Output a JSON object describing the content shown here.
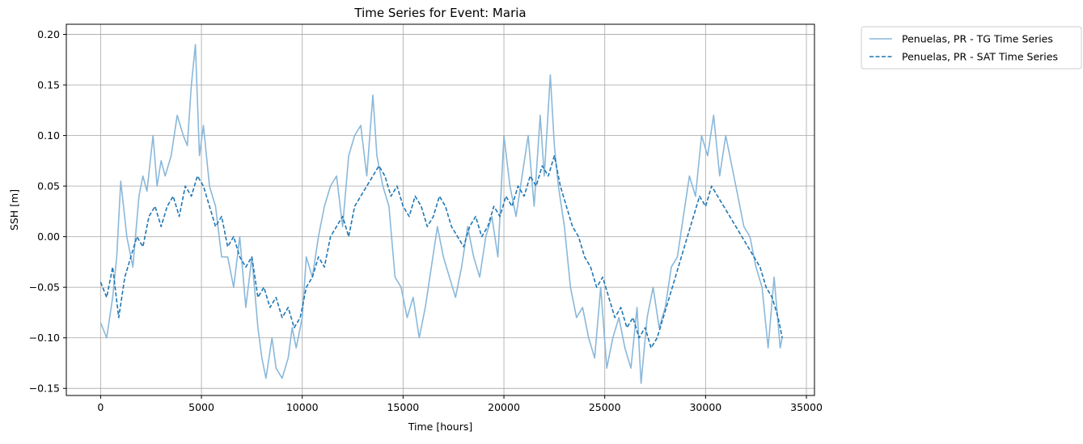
{
  "chart_data": {
    "type": "line",
    "title": "Time Series for Event: Maria",
    "xlabel": "Time [hours]",
    "ylabel": "SSH [m]",
    "xlim": [
      -1700,
      35400
    ],
    "ylim": [
      -0.157,
      0.21
    ],
    "xticks": [
      0,
      5000,
      10000,
      15000,
      20000,
      25000,
      30000,
      35000
    ],
    "xtick_labels": [
      "0",
      "5000",
      "10000",
      "15000",
      "20000",
      "25000",
      "30000",
      "35000"
    ],
    "yticks": [
      -0.15,
      -0.1,
      -0.05,
      0.0,
      0.05,
      0.1,
      0.15,
      0.2
    ],
    "ytick_labels": [
      "−0.15",
      "−0.10",
      "−0.05",
      "0.00",
      "0.05",
      "0.10",
      "0.15",
      "0.20"
    ],
    "grid": true,
    "legend_position": "outside-top-right",
    "series": [
      {
        "name": "Penuelas, PR - TG Time Series",
        "color": "#8ab8da",
        "style": "solid",
        "x": [
          0,
          300,
          600,
          800,
          1000,
          1300,
          1600,
          1900,
          2100,
          2300,
          2600,
          2800,
          3000,
          3200,
          3500,
          3800,
          4100,
          4300,
          4500,
          4700,
          4900,
          5100,
          5400,
          5700,
          6000,
          6300,
          6600,
          6900,
          7200,
          7500,
          7800,
          8000,
          8200,
          8500,
          8700,
          9000,
          9300,
          9500,
          9700,
          10000,
          10200,
          10500,
          10800,
          11100,
          11400,
          11700,
          12000,
          12300,
          12600,
          12900,
          13200,
          13500,
          13700,
          14000,
          14300,
          14600,
          14900,
          15200,
          15500,
          15800,
          16100,
          16400,
          16700,
          17000,
          17300,
          17600,
          17900,
          18200,
          18500,
          18800,
          19100,
          19400,
          19700,
          20000,
          20300,
          20600,
          20900,
          21200,
          21500,
          21800,
          22000,
          22300,
          22500,
          22700,
          23000,
          23300,
          23600,
          23900,
          24200,
          24500,
          24800,
          25100,
          25400,
          25700,
          26000,
          26300,
          26600,
          26800,
          27100,
          27400,
          27700,
          28000,
          28300,
          28600,
          28900,
          29200,
          29500,
          29800,
          30100,
          30400,
          30700,
          31000,
          31300,
          31600,
          31900,
          32200,
          32500,
          32800,
          33100,
          33400,
          33700,
          33800
        ],
        "y": [
          -0.085,
          -0.1,
          -0.06,
          -0.02,
          0.055,
          0.0,
          -0.03,
          0.04,
          0.06,
          0.045,
          0.1,
          0.05,
          0.075,
          0.06,
          0.08,
          0.12,
          0.1,
          0.09,
          0.15,
          0.19,
          0.08,
          0.11,
          0.05,
          0.03,
          -0.02,
          -0.02,
          -0.05,
          0.0,
          -0.07,
          -0.02,
          -0.09,
          -0.12,
          -0.14,
          -0.1,
          -0.13,
          -0.14,
          -0.12,
          -0.09,
          -0.11,
          -0.08,
          -0.02,
          -0.04,
          0.0,
          0.03,
          0.05,
          0.06,
          0.01,
          0.08,
          0.1,
          0.11,
          0.06,
          0.14,
          0.08,
          0.05,
          0.03,
          -0.04,
          -0.05,
          -0.08,
          -0.06,
          -0.1,
          -0.07,
          -0.03,
          0.01,
          -0.02,
          -0.04,
          -0.06,
          -0.03,
          0.01,
          -0.02,
          -0.04,
          0.0,
          0.02,
          -0.02,
          0.1,
          0.05,
          0.02,
          0.06,
          0.1,
          0.03,
          0.12,
          0.06,
          0.16,
          0.09,
          0.05,
          0.01,
          -0.05,
          -0.08,
          -0.07,
          -0.1,
          -0.12,
          -0.05,
          -0.13,
          -0.1,
          -0.08,
          -0.11,
          -0.13,
          -0.07,
          -0.145,
          -0.08,
          -0.05,
          -0.09,
          -0.07,
          -0.03,
          -0.02,
          0.02,
          0.06,
          0.04,
          0.1,
          0.08,
          0.12,
          0.06,
          0.1,
          0.07,
          0.04,
          0.01,
          0.0,
          -0.03,
          -0.05,
          -0.11,
          -0.04,
          -0.11,
          -0.1
        ]
      },
      {
        "name": "Penuelas, PR - SAT Time Series",
        "color": "#1f77b4",
        "style": "dashed",
        "x": [
          0,
          300,
          600,
          900,
          1200,
          1500,
          1800,
          2100,
          2400,
          2700,
          3000,
          3300,
          3600,
          3900,
          4200,
          4500,
          4800,
          5100,
          5400,
          5700,
          6000,
          6300,
          6600,
          6900,
          7200,
          7500,
          7800,
          8100,
          8400,
          8700,
          9000,
          9300,
          9600,
          9900,
          10200,
          10500,
          10800,
          11100,
          11400,
          11700,
          12000,
          12300,
          12600,
          12900,
          13200,
          13500,
          13800,
          14100,
          14400,
          14700,
          15000,
          15300,
          15600,
          15900,
          16200,
          16500,
          16800,
          17100,
          17400,
          17700,
          18000,
          18300,
          18600,
          18900,
          19200,
          19500,
          19800,
          20100,
          20400,
          20700,
          21000,
          21300,
          21600,
          21900,
          22200,
          22500,
          22800,
          23100,
          23400,
          23700,
          24000,
          24300,
          24600,
          24900,
          25200,
          25500,
          25800,
          26100,
          26400,
          26700,
          27000,
          27300,
          27600,
          27900,
          28200,
          28500,
          28800,
          29100,
          29400,
          29700,
          30000,
          30300,
          30600,
          30900,
          31200,
          31500,
          31800,
          32100,
          32400,
          32700,
          33000,
          33300,
          33600,
          33800
        ],
        "y": [
          -0.045,
          -0.06,
          -0.03,
          -0.08,
          -0.04,
          -0.02,
          0.0,
          -0.01,
          0.02,
          0.03,
          0.01,
          0.03,
          0.04,
          0.02,
          0.05,
          0.04,
          0.06,
          0.05,
          0.03,
          0.01,
          0.02,
          -0.01,
          0.0,
          -0.02,
          -0.03,
          -0.02,
          -0.06,
          -0.05,
          -0.07,
          -0.06,
          -0.08,
          -0.07,
          -0.09,
          -0.08,
          -0.05,
          -0.04,
          -0.02,
          -0.03,
          0.0,
          0.01,
          0.02,
          0.0,
          0.03,
          0.04,
          0.05,
          0.06,
          0.07,
          0.06,
          0.04,
          0.05,
          0.03,
          0.02,
          0.04,
          0.03,
          0.01,
          0.02,
          0.04,
          0.03,
          0.01,
          0.0,
          -0.01,
          0.01,
          0.02,
          0.0,
          0.01,
          0.03,
          0.02,
          0.04,
          0.03,
          0.05,
          0.04,
          0.06,
          0.05,
          0.07,
          0.06,
          0.08,
          0.05,
          0.03,
          0.01,
          0.0,
          -0.02,
          -0.03,
          -0.05,
          -0.04,
          -0.06,
          -0.08,
          -0.07,
          -0.09,
          -0.08,
          -0.1,
          -0.09,
          -0.11,
          -0.1,
          -0.08,
          -0.06,
          -0.04,
          -0.02,
          0.0,
          0.02,
          0.04,
          0.03,
          0.05,
          0.04,
          0.03,
          0.02,
          0.01,
          0.0,
          -0.01,
          -0.02,
          -0.03,
          -0.05,
          -0.06,
          -0.08,
          -0.1
        ]
      }
    ]
  }
}
